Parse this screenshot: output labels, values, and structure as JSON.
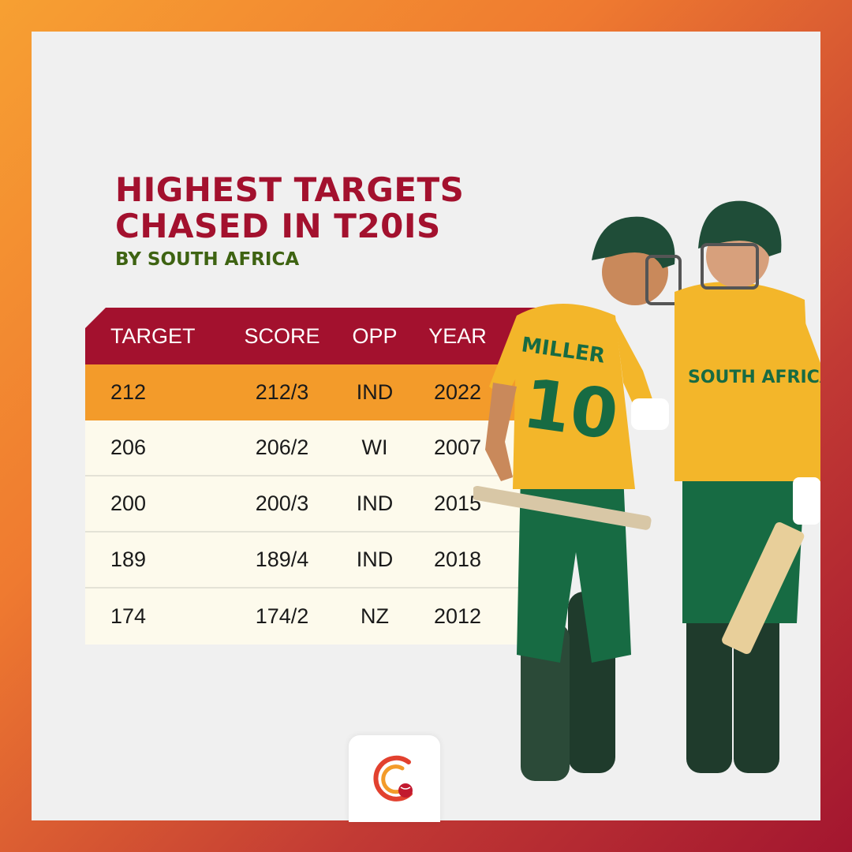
{
  "title": {
    "line1": "HIGHEST TARGETS",
    "line2": "CHASED IN T20IS"
  },
  "subtitle": "BY SOUTH AFRICA",
  "table": {
    "headers": [
      "TARGET",
      "SCORE",
      "OPP",
      "YEAR"
    ],
    "rows": [
      {
        "target": "212",
        "score": "212/3",
        "opp": "IND",
        "year": "2022"
      },
      {
        "target": "206",
        "score": "206/2",
        "opp": "WI",
        "year": "2007"
      },
      {
        "target": "200",
        "score": "200/3",
        "opp": "IND",
        "year": "2015"
      },
      {
        "target": "189",
        "score": "189/4",
        "opp": "IND",
        "year": "2018"
      },
      {
        "target": "174",
        "score": "174/2",
        "opp": "NZ",
        "year": "2012"
      }
    ]
  },
  "players": {
    "left_jersey_name": "MILLER",
    "left_jersey_number": "10",
    "right_jersey_text": "SOUTH AFRICA"
  },
  "colors": {
    "maroon": "#a3112e",
    "highlight": "#f39b2a",
    "green": "#3e6312",
    "row_bg": "#fdfaec"
  },
  "logo": "cricket-ball-logo-icon"
}
